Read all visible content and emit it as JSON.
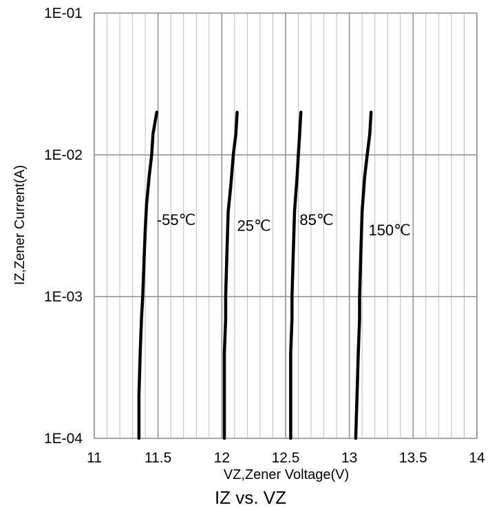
{
  "chart_data": {
    "type": "line",
    "title": "IZ vs. VZ",
    "xlabel": "VZ,Zener Voltage(V)",
    "ylabel": "IZ,Zener Current(A)",
    "xlim": [
      11,
      14
    ],
    "ylim": [
      0.0001,
      0.1
    ],
    "yscale": "log",
    "grid": true,
    "x_ticks": [
      "11",
      "11.5",
      "12",
      "12.5",
      "13",
      "13.5",
      "14"
    ],
    "y_ticks": [
      "1E-04",
      "1E-03",
      "1E-02",
      "1E-01"
    ],
    "line_color": "#000000",
    "series": [
      {
        "label": "-55℃",
        "points": [
          [
            11.35,
            0.0001
          ],
          [
            11.35,
            0.0002
          ],
          [
            11.36,
            0.0004
          ],
          [
            11.37,
            0.0007
          ],
          [
            11.38,
            0.001
          ],
          [
            11.39,
            0.0018
          ],
          [
            11.4,
            0.003
          ],
          [
            11.41,
            0.0045
          ],
          [
            11.43,
            0.007
          ],
          [
            11.45,
            0.01
          ],
          [
            11.46,
            0.014
          ],
          [
            11.49,
            0.02
          ]
        ]
      },
      {
        "label": "25℃",
        "points": [
          [
            12.02,
            0.0001
          ],
          [
            12.02,
            0.0002
          ],
          [
            12.02,
            0.0004
          ],
          [
            12.03,
            0.0007
          ],
          [
            12.03,
            0.001
          ],
          [
            12.04,
            0.002
          ],
          [
            12.05,
            0.004
          ],
          [
            12.07,
            0.006
          ],
          [
            12.09,
            0.01
          ],
          [
            12.11,
            0.014
          ],
          [
            12.12,
            0.02
          ]
        ]
      },
      {
        "label": "85℃",
        "points": [
          [
            12.54,
            0.0001
          ],
          [
            12.54,
            0.0002
          ],
          [
            12.54,
            0.0004
          ],
          [
            12.55,
            0.0007
          ],
          [
            12.55,
            0.001
          ],
          [
            12.56,
            0.002
          ],
          [
            12.57,
            0.004
          ],
          [
            12.59,
            0.007
          ],
          [
            12.6,
            0.01
          ],
          [
            12.61,
            0.014
          ],
          [
            12.62,
            0.02
          ]
        ]
      },
      {
        "label": "150℃",
        "points": [
          [
            13.05,
            0.0001
          ],
          [
            13.06,
            0.0002
          ],
          [
            13.07,
            0.0004
          ],
          [
            13.08,
            0.0007
          ],
          [
            13.08,
            0.001
          ],
          [
            13.09,
            0.002
          ],
          [
            13.1,
            0.004
          ],
          [
            13.12,
            0.007
          ],
          [
            13.14,
            0.01
          ],
          [
            13.16,
            0.014
          ],
          [
            13.17,
            0.02
          ]
        ]
      }
    ],
    "annotations": [
      {
        "text": "-55℃",
        "x": 11.49,
        "y": 0.0032
      },
      {
        "text": "25℃",
        "x": 12.12,
        "y": 0.0029
      },
      {
        "text": "85℃",
        "x": 12.61,
        "y": 0.0032
      },
      {
        "text": "150℃",
        "x": 13.15,
        "y": 0.0027
      }
    ]
  }
}
